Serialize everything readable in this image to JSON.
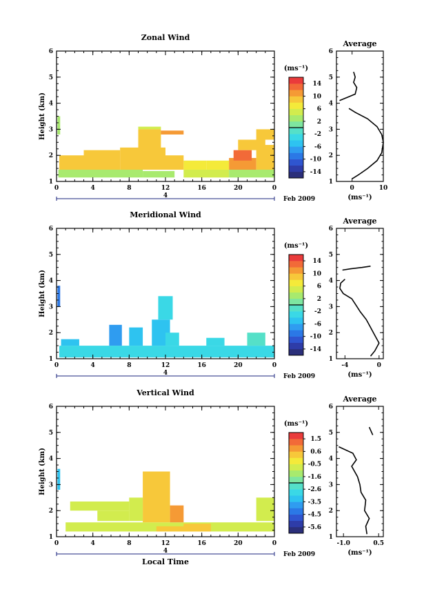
{
  "figure": {
    "x_axis_label": "Local Time",
    "date_label": "Feb 2009",
    "day_label": "4"
  },
  "chart_data": [
    {
      "id": "zonal",
      "type": "heatmap",
      "title": "Zonal Wind",
      "ylabel": "Height (km)",
      "unit": "(ms⁻¹)",
      "x_ticks": [
        "0",
        "4",
        "8",
        "12",
        "16",
        "20",
        "0"
      ],
      "xlim": [
        0,
        24
      ],
      "ylim": [
        1,
        6
      ],
      "y_ticks": [
        "1",
        "2",
        "3",
        "4",
        "5",
        "6"
      ],
      "colorbar_ticks": [
        "14",
        "10",
        "6",
        "2",
        "-2",
        "-6",
        "-10",
        "-14"
      ],
      "colorbar_range": [
        -16,
        16
      ],
      "cells": [
        {
          "t0": 0.2,
          "t1": 3.0,
          "h0": 1.15,
          "h1": 1.45,
          "v": 3
        },
        {
          "t0": 3.0,
          "t1": 9.5,
          "h0": 1.15,
          "h1": 1.45,
          "v": 3.5
        },
        {
          "t0": 9.5,
          "t1": 13.0,
          "h0": 1.15,
          "h1": 1.4,
          "v": 3
        },
        {
          "t0": 14.0,
          "t1": 19.0,
          "h0": 1.15,
          "h1": 1.45,
          "v": 4.5
        },
        {
          "t0": 19.0,
          "t1": 24.0,
          "h0": 1.15,
          "h1": 1.45,
          "v": 3.5
        },
        {
          "t0": 0.3,
          "t1": 3.0,
          "h0": 1.45,
          "h1": 2.0,
          "v": 9
        },
        {
          "t0": 3.0,
          "t1": 7.0,
          "h0": 1.45,
          "h1": 2.2,
          "v": 8
        },
        {
          "t0": 7.0,
          "t1": 12.0,
          "h0": 1.45,
          "h1": 2.3,
          "v": 9
        },
        {
          "t0": 12.0,
          "t1": 14.0,
          "h0": 1.45,
          "h1": 2.0,
          "v": 8
        },
        {
          "t0": 14.0,
          "t1": 16.5,
          "h0": 1.45,
          "h1": 1.8,
          "v": 6
        },
        {
          "t0": 16.5,
          "t1": 19.0,
          "h0": 1.45,
          "h1": 1.8,
          "v": 7
        },
        {
          "t0": 19.0,
          "t1": 22.0,
          "h0": 1.45,
          "h1": 1.9,
          "v": 10
        },
        {
          "t0": 22.0,
          "t1": 24.0,
          "h0": 1.45,
          "h1": 2.4,
          "v": 8
        },
        {
          "t0": 9.0,
          "t1": 11.5,
          "h0": 2.2,
          "h1": 3.0,
          "v": 8
        },
        {
          "t0": 11.5,
          "t1": 14.0,
          "h0": 2.8,
          "h1": 2.95,
          "v": 11
        },
        {
          "t0": 9.0,
          "t1": 11.5,
          "h0": 3.0,
          "h1": 3.1,
          "v": 4
        },
        {
          "t0": 19.5,
          "t1": 21.5,
          "h0": 1.8,
          "h1": 2.2,
          "v": 12
        },
        {
          "t0": 20.0,
          "t1": 23.0,
          "h0": 2.2,
          "h1": 2.6,
          "v": 8
        },
        {
          "t0": 22.0,
          "t1": 24.0,
          "h0": 2.6,
          "h1": 3.0,
          "v": 9
        },
        {
          "t0": 0.1,
          "t1": 0.4,
          "h0": 2.8,
          "h1": 3.5,
          "v": 3
        }
      ],
      "profile": {
        "title": "Average",
        "xlabel": "(ms⁻¹)",
        "x_ticks": [
          "0",
          "10"
        ],
        "xlim": [
          -5,
          10
        ],
        "ylim": [
          1,
          6
        ],
        "y_ticks": [
          "1",
          "2",
          "3",
          "4",
          "5",
          "6"
        ],
        "lines": [
          {
            "x": [
              0,
              2,
              5,
              8,
              9.5,
              10,
              9.5,
              8,
              5,
              1,
              -1
            ],
            "h": [
              1.1,
              1.25,
              1.5,
              1.8,
              2.1,
              2.5,
              2.8,
              3.1,
              3.4,
              3.65,
              3.8
            ]
          },
          {
            "x": [
              -4,
              1,
              1.5,
              0.5,
              1,
              0.5
            ],
            "h": [
              4.1,
              4.35,
              4.6,
              4.8,
              5.0,
              5.2
            ]
          }
        ]
      }
    },
    {
      "id": "meridional",
      "type": "heatmap",
      "title": "Meridional Wind",
      "ylabel": "Height (km)",
      "unit": "(ms⁻¹)",
      "x_ticks": [
        "0",
        "4",
        "8",
        "12",
        "16",
        "20",
        "0"
      ],
      "xlim": [
        0,
        24
      ],
      "ylim": [
        1,
        6
      ],
      "y_ticks": [
        "1",
        "2",
        "3",
        "4",
        "5",
        "6"
      ],
      "colorbar_ticks": [
        "14",
        "10",
        "6",
        "2",
        "-2",
        "-6",
        "-10",
        "-14"
      ],
      "colorbar_range": [
        -16,
        16
      ],
      "cells": [
        {
          "t0": 0.3,
          "t1": 24.0,
          "h0": 1.05,
          "h1": 1.5,
          "v": -3.5
        },
        {
          "t0": 0.5,
          "t1": 2.5,
          "h0": 1.5,
          "h1": 1.75,
          "v": -5
        },
        {
          "t0": 5.8,
          "t1": 7.2,
          "h0": 1.5,
          "h1": 2.3,
          "v": -7
        },
        {
          "t0": 8.0,
          "t1": 9.5,
          "h0": 1.5,
          "h1": 2.2,
          "v": -5
        },
        {
          "t0": 10.5,
          "t1": 12.5,
          "h0": 1.5,
          "h1": 2.5,
          "v": -6
        },
        {
          "t0": 12.0,
          "t1": 13.5,
          "h0": 1.5,
          "h1": 2.0,
          "v": -3
        },
        {
          "t0": 16.5,
          "t1": 18.5,
          "h0": 1.5,
          "h1": 1.8,
          "v": -4
        },
        {
          "t0": 21.0,
          "t1": 23.0,
          "h0": 1.5,
          "h1": 2.0,
          "v": -1
        },
        {
          "t0": 11.2,
          "t1": 12.8,
          "h0": 2.5,
          "h1": 3.4,
          "v": -4
        },
        {
          "t0": 0.1,
          "t1": 0.4,
          "h0": 3.0,
          "h1": 3.8,
          "v": -9
        }
      ],
      "profile": {
        "title": "Average",
        "xlabel": "(ms⁻¹)",
        "x_ticks": [
          "-4",
          "0"
        ],
        "xlim": [
          -5,
          0.5
        ],
        "ylim": [
          1,
          6
        ],
        "y_ticks": [
          "1",
          "2",
          "3",
          "4",
          "5",
          "6"
        ],
        "lines": [
          {
            "x": [
              -1,
              -0.5,
              0,
              -0.5,
              -1,
              -1.5,
              -2.2,
              -2.6,
              -3.2,
              -4.2,
              -4.6,
              -4.5,
              -4
            ],
            "h": [
              1.1,
              1.3,
              1.6,
              1.9,
              2.2,
              2.5,
              2.8,
              3.0,
              3.3,
              3.5,
              3.7,
              3.9,
              4.05
            ]
          },
          {
            "x": [
              -4.3,
              -3.3,
              -2,
              -1
            ],
            "h": [
              4.4,
              4.45,
              4.5,
              4.55
            ]
          }
        ]
      }
    },
    {
      "id": "vertical",
      "type": "heatmap",
      "title": "Vertical Wind",
      "ylabel": "Height (km)",
      "unit": "(ms⁻¹)",
      "x_ticks": [
        "0",
        "4",
        "8",
        "12",
        "16",
        "20",
        "0"
      ],
      "xlim": [
        0,
        24
      ],
      "ylim": [
        1,
        6
      ],
      "y_ticks": [
        "1",
        "2",
        "3",
        "4",
        "5",
        "6"
      ],
      "colorbar_ticks": [
        "1.5",
        "0.6",
        "-0.5",
        "-1.6",
        "-2.6",
        "-3.5",
        "-4.5",
        "-5.6"
      ],
      "colorbar_range": [
        -6.0,
        2.0
      ],
      "cells": [
        {
          "t0": 1.0,
          "t1": 24.0,
          "h0": 1.2,
          "h1": 1.55,
          "v": -0.9
        },
        {
          "t0": 1.5,
          "t1": 8.0,
          "h0": 2.0,
          "h1": 2.35,
          "v": -0.8
        },
        {
          "t0": 4.5,
          "t1": 8.0,
          "h0": 1.6,
          "h1": 2.0,
          "v": -0.6
        },
        {
          "t0": 9.5,
          "t1": 12.5,
          "h0": 1.55,
          "h1": 3.5,
          "v": 0.3
        },
        {
          "t0": 12.5,
          "t1": 14.0,
          "h0": 1.55,
          "h1": 2.2,
          "v": 0.5
        },
        {
          "t0": 8.0,
          "t1": 9.5,
          "h0": 1.6,
          "h1": 2.5,
          "v": -0.6
        },
        {
          "t0": 14.0,
          "t1": 17.0,
          "h0": 1.2,
          "h1": 1.5,
          "v": 0.3
        },
        {
          "t0": 11.0,
          "t1": 16.0,
          "h0": 1.2,
          "h1": 1.4,
          "v": 0.4
        },
        {
          "t0": 22.0,
          "t1": 24.0,
          "h0": 1.6,
          "h1": 2.5,
          "v": -0.7
        },
        {
          "t0": 0.1,
          "t1": 0.4,
          "h0": 2.8,
          "h1": 3.6,
          "v": -3.5
        }
      ],
      "profile": {
        "title": "Average",
        "xlabel": "(ms⁻¹)",
        "x_ticks": [
          "-1.0",
          "0.5"
        ],
        "xlim": [
          -1.3,
          0.7
        ],
        "ylim": [
          1,
          6
        ],
        "y_ticks": [
          "1",
          "2",
          "3",
          "4",
          "5",
          "6"
        ],
        "lines": [
          {
            "x": [
              0.0,
              -0.05,
              0.1,
              -0.1,
              -0.05,
              -0.25,
              -0.3,
              -0.4,
              -0.65,
              -0.45,
              -0.6,
              -1.2
            ],
            "h": [
              1.1,
              1.4,
              1.7,
              2.0,
              2.4,
              2.7,
              3.0,
              3.3,
              3.7,
              3.95,
              4.2,
              4.45
            ]
          },
          {
            "x": [
              0.2,
              0.1,
              0.25
            ],
            "h": [
              5.0,
              5.2,
              4.9
            ]
          }
        ]
      }
    }
  ]
}
